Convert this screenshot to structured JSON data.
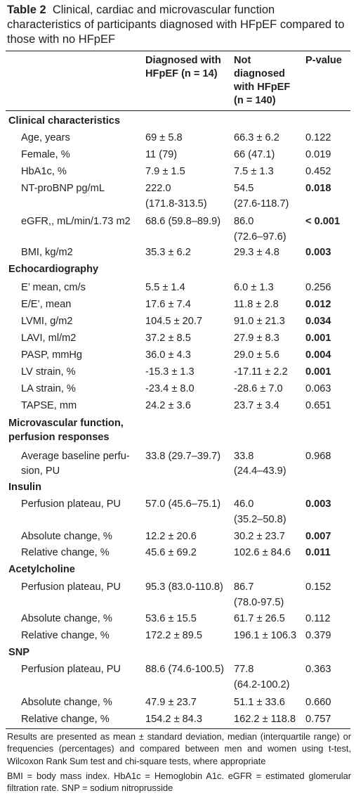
{
  "caption": {
    "label": "Table 2",
    "text": "Clinical, cardiac and microvascular function characteristics of participants diagnosed with HFpEF compared to those with no HFpEF"
  },
  "headers": {
    "col1_line1": "Diagnosed with",
    "col1_line2": "HFpEF (n = 14)",
    "col2_line1": "Not",
    "col2_line2": "diagnosed",
    "col2_line3": "with HFpEF",
    "col2_line4": "(n = 140)",
    "col3": "P-value"
  },
  "sections": {
    "clinical": "Clinical characteristics",
    "echo": "Echocardiography",
    "micro_line1": "Microvascular function,",
    "micro_line2": "perfusion responses",
    "insulin": "Insulin",
    "ach": "Acetylcholine",
    "snp": "SNP"
  },
  "rows": {
    "age": {
      "label": "Age, years",
      "v1": "69 ± 5.8",
      "v2": "66.3 ± 6.2",
      "p": "0.122"
    },
    "female": {
      "label": "Female, %",
      "v1": "11 (79)",
      "v2": "66 (47.1)",
      "p": "0.019"
    },
    "hba1c": {
      "label": "HbA1c, %",
      "v1": "7.9 ± 1.5",
      "v2": "7.5 ± 1.3",
      "p": "0.452"
    },
    "ntprobnp": {
      "label": "NT-proBNP pg/mL",
      "v1a": "222.0",
      "v1b": "(171.8-313.5)",
      "v2a": "54.5",
      "v2b": "(27.6-118.7)",
      "p": "0.018"
    },
    "egfr": {
      "label": "eGFR,, mL/min/1.73 m2",
      "v1": "68.6 (59.8–89.9)",
      "v2a": "86.0",
      "v2b": "(72.6–97.6)",
      "p": "< 0.001"
    },
    "bmi": {
      "label": "BMI, kg/m2",
      "v1": "35.3 ± 6.2",
      "v2": "29.3 ± 4.8",
      "p": "0.003"
    },
    "emean": {
      "label": "E’ mean, cm/s",
      "v1": "5.5 ± 1.4",
      "v2": "6.0 ± 1.3",
      "p": "0.256"
    },
    "ee": {
      "label": "E/E’, mean",
      "v1": "17.6 ± 7.4",
      "v2": "11.8 ± 2.8",
      "p": "0.012"
    },
    "lvmi": {
      "label": "LVMI, g/m2",
      "v1": "104.5 ± 20.7",
      "v2": "91.0 ± 21.3",
      "p": "0.034"
    },
    "lavi": {
      "label": "LAVI, ml/m2",
      "v1": "37.2 ± 8.5",
      "v2": "27.9 ± 8.3",
      "p": "0.001"
    },
    "pasp": {
      "label": "PASP, mmHg",
      "v1": "36.0 ± 4.3",
      "v2": "29.0 ± 5.6",
      "p": "0.004"
    },
    "lvstrain": {
      "label": "LV strain, %",
      "v1": "-15.3 ± 1.3",
      "v2": "-17.11 ± 2.2",
      "p": "0.001"
    },
    "lastrain": {
      "label": "LA strain, %",
      "v1": "-23.4 ± 8.0",
      "v2": "-28.6 ± 7.0",
      "p": "0.063"
    },
    "tapse": {
      "label": "TAPSE, mm",
      "v1": "24.2 ± 3.6",
      "v2": "23.7 ± 3.4",
      "p": "0.651"
    },
    "baseline": {
      "label1": "Average baseline perfu-",
      "label2": "sion, PU",
      "v1": "33.8 (29.7–39.7)",
      "v2a": "33.8",
      "v2b": "(24.4–43.9)",
      "p": "0.968"
    },
    "ins_plateau": {
      "label": "Perfusion plateau, PU",
      "v1": "57.0 (45.6–75.1)",
      "v2a": "46.0",
      "v2b": "(35.2–50.8)",
      "p": "0.003"
    },
    "ins_abs": {
      "label": "Absolute change, %",
      "v1": "12.2 ± 20.6",
      "v2": "30.2 ± 23.7",
      "p": "0.007"
    },
    "ins_rel": {
      "label": "Relative change, %",
      "v1": "45.6 ± 69.2",
      "v2": "102.6 ± 84.6",
      "p": "0.011"
    },
    "ach_plateau": {
      "label": "Perfusion plateau, PU",
      "v1": "95.3 (83.0-110.8)",
      "v2a": "86.7",
      "v2b": "(78.0-97.5)",
      "p": "0.152"
    },
    "ach_abs": {
      "label": "Absolute change, %",
      "v1": "53.6 ± 15.5",
      "v2": "61.7 ± 26.5",
      "p": "0.112"
    },
    "ach_rel": {
      "label": "Relative change, %",
      "v1": "172.2 ± 89.5",
      "v2": "196.1 ± 106.3",
      "p": "0.379"
    },
    "snp_plateau": {
      "label": "Perfusion plateau, PU",
      "v1": "88.6 (74.6-100.5)",
      "v2a": "77.8",
      "v2b": "(64.2-100.2)",
      "p": "0.363"
    },
    "snp_abs": {
      "label": "Absolute change, %",
      "v1": "47.9 ± 23.7",
      "v2": "51.1 ± 33.6",
      "p": "0.660"
    },
    "snp_rel": {
      "label": "Relative change, %",
      "v1": "154.2 ± 84.3",
      "v2": "162.2 ± 118.8",
      "p": "0.757"
    }
  },
  "footnotes": {
    "note1": "Results are presented as mean ± standard deviation, median (interquartile range) or frequencies (percentages) and compared between men and women using t-test, Wilcoxon Rank Sum test and chi-square tests, where appropriate",
    "note2": "BMI = body mass index. HbA1c = Hemoglobin A1c. eGFR = estimated glomerular filtration rate. SNP = sodium nitroprusside"
  }
}
